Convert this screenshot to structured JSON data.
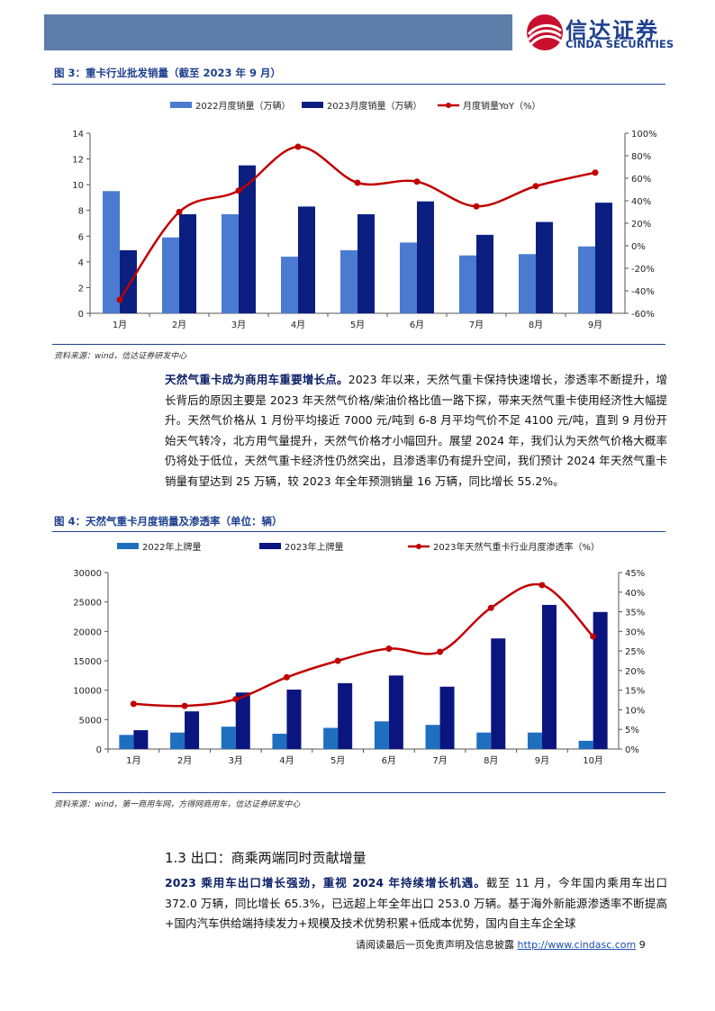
{
  "header": {
    "logo_cn": "信达证券",
    "logo_en": "CINDA SECURITIES"
  },
  "figure3": {
    "title": "图 3：重卡行业批发销量（截至 2023 年 9 月）",
    "source": "资料来源：wind，信达证券研发中心"
  },
  "para1": {
    "lead": "天然气重卡成为商用车重要增长点。",
    "text": "2023 年以来，天然气重卡保持快速增长，渗透率不断提升，增长背后的原因主要是 2023 年天然气价格/柴油价格比值一路下探，带来天然气重卡使用经济性大幅提升。天然气价格从 1 月份平均接近 7000 元/吨到 6-8 月平均气价不足 4100 元/吨，直到 9 月份开始天气转冷，北方用气量提升，天然气价格才小幅回升。展望 2024 年，我们认为天然气价格大概率仍将处于低位，天然气重卡经济性仍然突出，且渗透率仍有提升空间，我们预计 2024 年天然气重卡销量有望达到 25 万辆，较 2023 年全年预测销量 16 万辆，同比增长 55.2%。"
  },
  "figure4": {
    "title": "图 4：天然气重卡月度销量及渗透率（单位：辆）",
    "source": "资料来源：wind，第一商用车网，方得网商用车，信达证券研发中心"
  },
  "section": {
    "title": "1.3 出口：商乘两端同时贡献增量"
  },
  "para2": {
    "lead": "2023 乘用车出口增长强劲，重视 2024 年持续增长机遇。",
    "text": "截至 11 月，今年国内乘用车出口 372.0 万辆，同比增长 65.3%，已远超上年全年出口 253.0 万辆。基于海外新能源渗透率不断提高+国内汽车供给端持续发力+规模及技术优势积累+低成本优势，国内自主车企全球"
  },
  "footer": {
    "text": "请阅读最后一页免责声明及信息披露 ",
    "link": "http://www.cindasc.com",
    "page": " 9"
  },
  "chart_data": [
    {
      "type": "bar",
      "title": "",
      "categories": [
        "1月",
        "2月",
        "3月",
        "4月",
        "5月",
        "6月",
        "7月",
        "8月",
        "9月"
      ],
      "series": [
        {
          "name": "2022月度销量（万辆）",
          "kind": "bar",
          "axis": "left",
          "color": "#4a7bd0",
          "values": [
            9.5,
            5.9,
            7.7,
            4.4,
            4.9,
            5.5,
            4.5,
            4.6,
            5.2
          ]
        },
        {
          "name": "2023月度销量（万辆）",
          "kind": "bar",
          "axis": "left",
          "color": "#0a1f80",
          "values": [
            4.9,
            7.7,
            11.5,
            8.3,
            7.7,
            8.7,
            6.1,
            7.1,
            8.6
          ]
        },
        {
          "name": "月度销量YoY（%）",
          "kind": "line",
          "axis": "right",
          "color": "#c00000",
          "values": [
            -48,
            30,
            49,
            88,
            56,
            57,
            35,
            53,
            65
          ]
        }
      ],
      "yleft": {
        "min": 0,
        "max": 14,
        "ticks": [
          "0",
          "2",
          "4",
          "6",
          "8",
          "10",
          "12",
          "14"
        ]
      },
      "yright": {
        "min": -60,
        "max": 100,
        "ticks": [
          "-60%",
          "-40%",
          "-20%",
          "0%",
          "20%",
          "40%",
          "60%",
          "80%",
          "100%"
        ]
      },
      "legend": "top"
    },
    {
      "type": "bar",
      "title": "",
      "categories": [
        "1月",
        "2月",
        "3月",
        "4月",
        "5月",
        "6月",
        "7月",
        "8月",
        "9月",
        "10月"
      ],
      "series": [
        {
          "name": "2022年上牌量",
          "kind": "bar",
          "axis": "left",
          "color": "#1f6fbf",
          "values": [
            2400,
            2800,
            3800,
            2600,
            3600,
            4700,
            4100,
            2800,
            2800,
            1400
          ]
        },
        {
          "name": "2023年上牌量",
          "kind": "bar",
          "axis": "left",
          "color": "#0a1580",
          "values": [
            3200,
            6400,
            9600,
            10100,
            11200,
            12500,
            10600,
            18800,
            24500,
            23300
          ]
        },
        {
          "name": "2023年天然气重卡行业月度渗透率（%）",
          "kind": "line",
          "axis": "right",
          "color": "#c00000",
          "values": [
            11.5,
            11,
            12.7,
            18.3,
            22.5,
            25.6,
            24.8,
            36,
            41.8,
            28.7
          ]
        }
      ],
      "yleft": {
        "min": 0,
        "max": 30000,
        "ticks": [
          "0",
          "5000",
          "10000",
          "15000",
          "20000",
          "25000",
          "30000"
        ]
      },
      "yright": {
        "min": 0,
        "max": 45,
        "ticks": [
          "0%",
          "5%",
          "10%",
          "15%",
          "20%",
          "25%",
          "30%",
          "35%",
          "40%",
          "45%"
        ]
      },
      "legend": "top"
    }
  ]
}
